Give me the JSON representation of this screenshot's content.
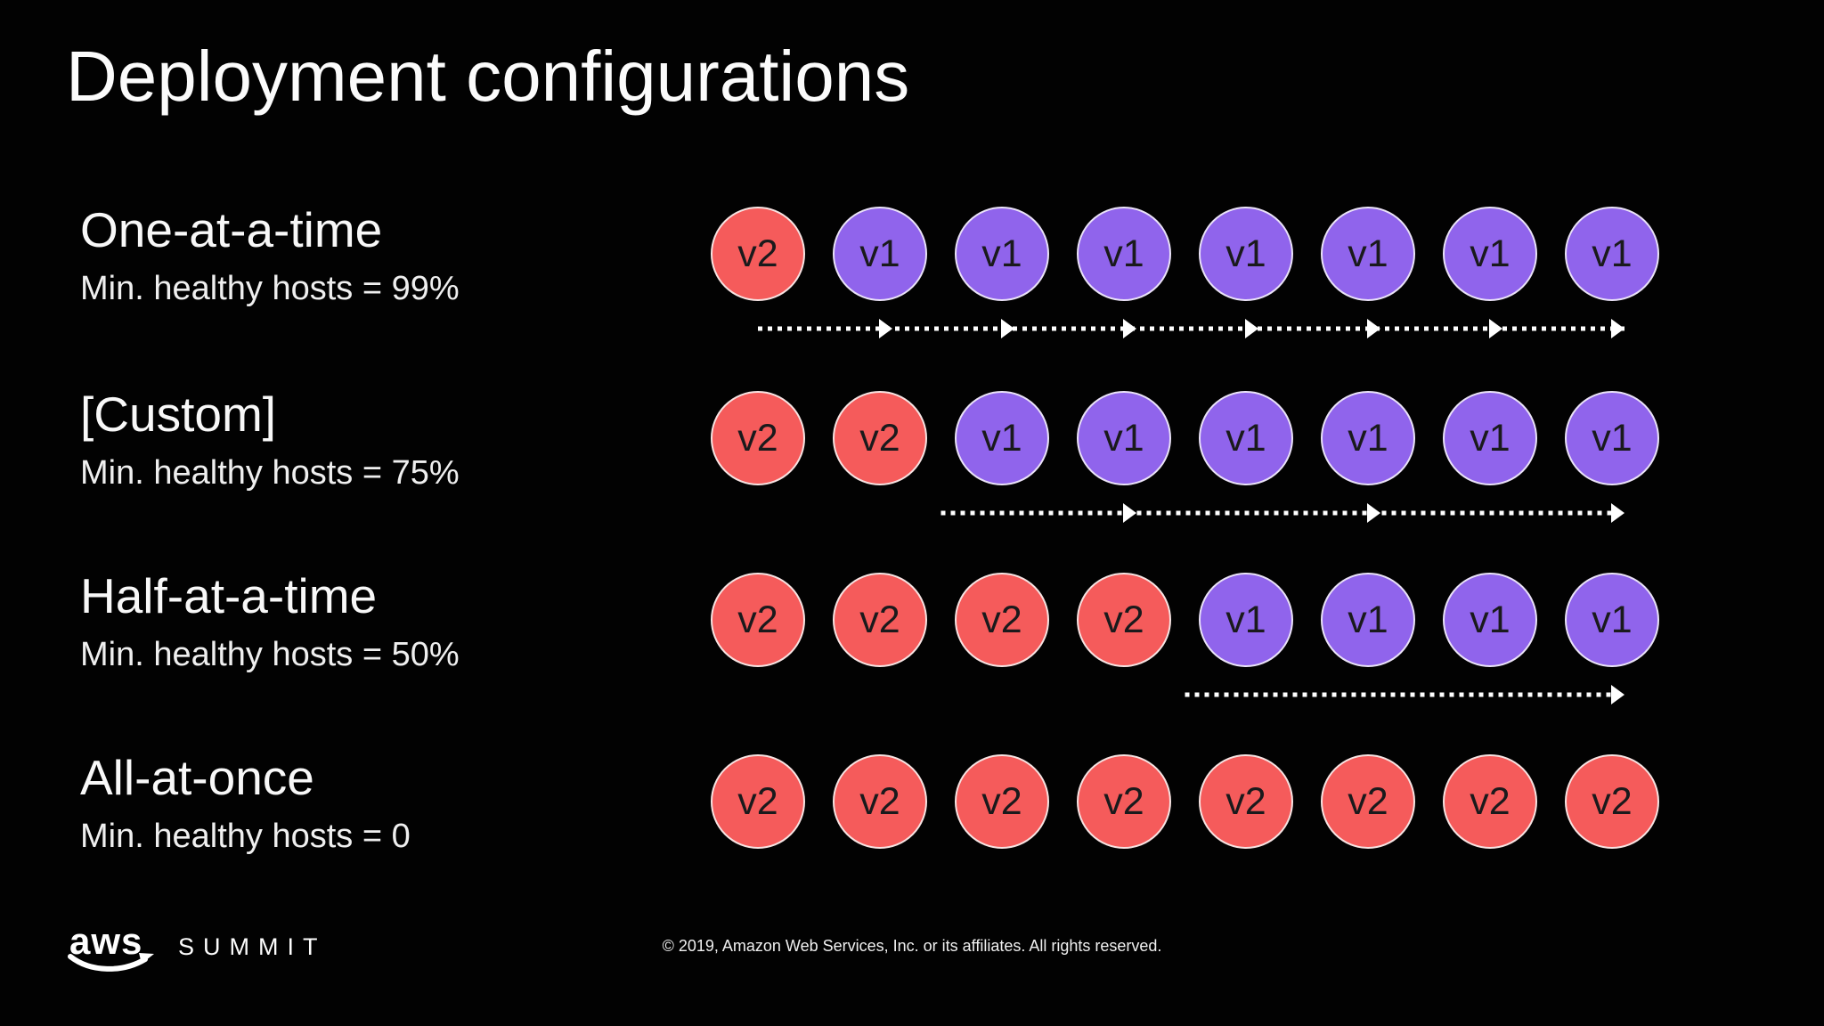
{
  "slide": {
    "title": "Deployment configurations",
    "host_colors": {
      "v1": "#9064EC",
      "v2": "#F55B5B"
    },
    "rows": [
      {
        "title": "One-at-a-time",
        "subtitle": "Min. healthy hosts = 99%",
        "hosts": [
          "v2",
          "v1",
          "v1",
          "v1",
          "v1",
          "v1",
          "v1",
          "v1"
        ],
        "arrow": {
          "from": 1,
          "heads": [
            2,
            3,
            4,
            5,
            6,
            7,
            8
          ]
        }
      },
      {
        "title": "[Custom]",
        "subtitle": "Min. healthy hosts = 75%",
        "hosts": [
          "v2",
          "v2",
          "v1",
          "v1",
          "v1",
          "v1",
          "v1",
          "v1"
        ],
        "arrow": {
          "from": 2.5,
          "heads": [
            4,
            6,
            8
          ]
        }
      },
      {
        "title": "Half-at-a-time",
        "subtitle": "Min. healthy hosts = 50%",
        "hosts": [
          "v2",
          "v2",
          "v2",
          "v2",
          "v1",
          "v1",
          "v1",
          "v1"
        ],
        "arrow": {
          "from": 4.5,
          "heads": [
            8
          ]
        }
      },
      {
        "title": "All-at-once",
        "subtitle": "Min. healthy hosts = 0",
        "hosts": [
          "v2",
          "v2",
          "v2",
          "v2",
          "v2",
          "v2",
          "v2",
          "v2"
        ],
        "arrow": null
      }
    ],
    "footer": {
      "logo_text": "aws",
      "brand": "SUMMIT",
      "copyright": "© 2019, Amazon Web Services, Inc. or its affiliates. All rights reserved."
    }
  }
}
